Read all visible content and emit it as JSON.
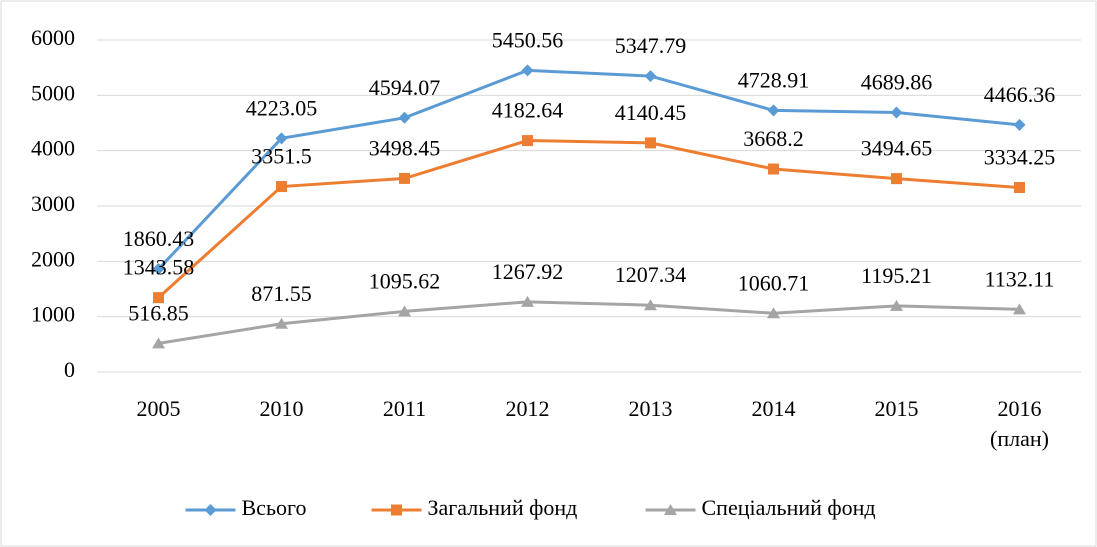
{
  "chart_data": {
    "type": "line",
    "categories": [
      "2005",
      "2010",
      "2011",
      "2012",
      "2013",
      "2014",
      "2015",
      "2016 (план)"
    ],
    "series": [
      {
        "name": "Всього",
        "color": "#5b9bd5",
        "marker": "diamond",
        "values": [
          1860.43,
          4223.05,
          4594.07,
          5450.56,
          5347.79,
          4728.91,
          4689.86,
          4466.36
        ]
      },
      {
        "name": "Загальний фонд",
        "color": "#ed7d31",
        "marker": "square",
        "values": [
          1343.58,
          3351.5,
          3498.45,
          4182.64,
          4140.45,
          3668.2,
          3494.65,
          3334.25
        ]
      },
      {
        "name": "Спеціальний фонд",
        "color": "#a5a5a5",
        "marker": "triangle",
        "values": [
          516.85,
          871.55,
          1095.62,
          1267.92,
          1207.34,
          1060.71,
          1195.21,
          1132.11
        ]
      }
    ],
    "ylim": [
      0,
      6000
    ],
    "yticks": [
      0,
      1000,
      2000,
      3000,
      4000,
      5000,
      6000
    ],
    "grid": true,
    "legend": "bottom"
  }
}
